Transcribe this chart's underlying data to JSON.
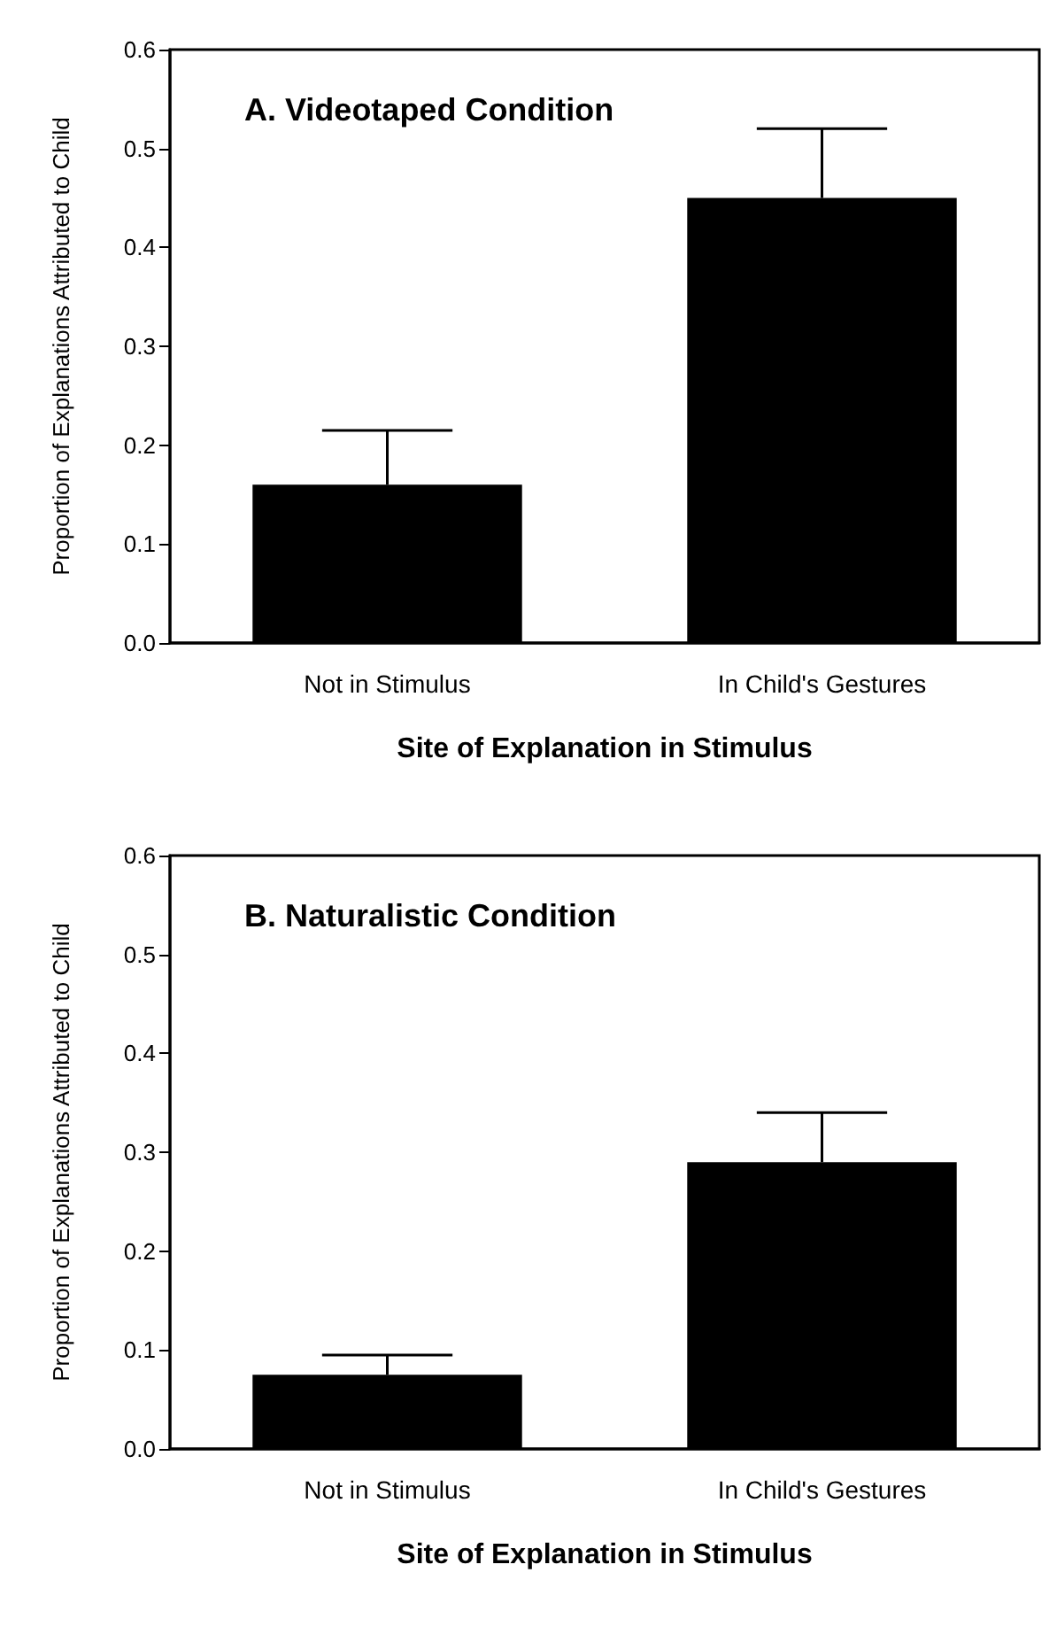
{
  "chart_data": [
    {
      "type": "bar",
      "title": "A. Videotaped Condition",
      "xlabel": "Site of Explanation in Stimulus",
      "ylabel": "Proportion of Explanations Attributed to Child",
      "categories": [
        "Not in Stimulus",
        "In Child's Gestures"
      ],
      "values": [
        0.16,
        0.45
      ],
      "errors": [
        [
          0.16,
          0.215
        ],
        [
          0.45,
          0.52
        ]
      ],
      "color": "#000000",
      "ylim": [
        0,
        0.6
      ],
      "yticks": [
        {
          "value": 0,
          "label": "0.0"
        },
        0.1,
        0.2,
        0.3,
        0.4,
        0.5,
        0.6
      ],
      "grid": false
    },
    {
      "type": "bar",
      "title": "B. Naturalistic Condition",
      "xlabel": "Site of Explanation in Stimulus",
      "ylabel": "Proportion of Explanations Attributed to Child",
      "categories": [
        "Not in Stimulus",
        "In Child's Gestures"
      ],
      "values": [
        0.075,
        0.29
      ],
      "errors": [
        [
          0.075,
          0.095
        ],
        [
          0.29,
          0.34
        ]
      ],
      "color": "#000000",
      "ylim": [
        0,
        0.6
      ],
      "yticks": [
        {
          "value": 0,
          "label": "0.0"
        },
        0.1,
        0.2,
        0.3,
        0.4,
        0.5,
        0.6
      ],
      "grid": false
    }
  ]
}
